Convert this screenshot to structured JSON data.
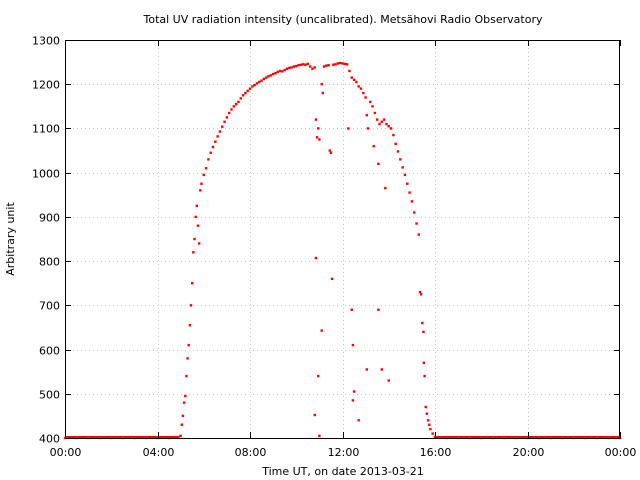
{
  "chart_data": {
    "type": "scatter",
    "title": "Total UV radiation intensity (uncalibrated). Metsähovi Radio Observatory",
    "xlabel": "Time UT, on date 2013-03-21",
    "ylabel": "Arbitrary unit",
    "xlim": [
      0,
      24
    ],
    "ylim": [
      400,
      1300
    ],
    "x_ticks": [
      0,
      4,
      8,
      12,
      16,
      20,
      24
    ],
    "x_tick_labels": [
      "00:00",
      "04:00",
      "08:00",
      "12:00",
      "16:00",
      "20:00",
      "00:00"
    ],
    "y_ticks": [
      400,
      500,
      600,
      700,
      800,
      900,
      1000,
      1100,
      1200,
      1300
    ],
    "y_tick_labels": [
      "400",
      "500",
      "600",
      "700",
      "800",
      "900",
      "1000",
      "1100",
      "1200",
      "1300"
    ],
    "grid": true,
    "color": "#ff0000",
    "series": [
      {
        "points": [
          [
            0.0,
            400
          ],
          [
            0.5,
            400
          ],
          [
            1.0,
            400
          ],
          [
            1.5,
            400
          ],
          [
            2.0,
            400
          ],
          [
            2.5,
            400
          ],
          [
            3.0,
            400
          ],
          [
            3.5,
            400
          ],
          [
            4.0,
            400
          ],
          [
            4.5,
            400
          ],
          [
            4.9,
            402
          ],
          [
            5.0,
            405
          ],
          [
            5.05,
            430
          ],
          [
            5.1,
            450
          ],
          [
            5.15,
            480
          ],
          [
            5.2,
            495
          ],
          [
            5.25,
            540
          ],
          [
            5.3,
            580
          ],
          [
            5.35,
            610
          ],
          [
            5.4,
            655
          ],
          [
            5.45,
            700
          ],
          [
            5.5,
            750
          ],
          [
            5.55,
            820
          ],
          [
            5.6,
            850
          ],
          [
            5.65,
            900
          ],
          [
            5.7,
            925
          ],
          [
            5.75,
            880
          ],
          [
            5.8,
            840
          ],
          [
            5.85,
            960
          ],
          [
            5.9,
            975
          ],
          [
            6.0,
            995
          ],
          [
            6.1,
            1010
          ],
          [
            6.2,
            1030
          ],
          [
            6.3,
            1045
          ],
          [
            6.4,
            1058
          ],
          [
            6.5,
            1070
          ],
          [
            6.6,
            1082
          ],
          [
            6.7,
            1093
          ],
          [
            6.8,
            1104
          ],
          [
            6.9,
            1115
          ],
          [
            7.0,
            1125
          ],
          [
            7.1,
            1135
          ],
          [
            7.2,
            1143
          ],
          [
            7.3,
            1150
          ],
          [
            7.4,
            1155
          ],
          [
            7.5,
            1160
          ],
          [
            7.6,
            1168
          ],
          [
            7.7,
            1175
          ],
          [
            7.8,
            1180
          ],
          [
            7.9,
            1185
          ],
          [
            8.0,
            1190
          ],
          [
            8.1,
            1195
          ],
          [
            8.2,
            1198
          ],
          [
            8.3,
            1202
          ],
          [
            8.4,
            1205
          ],
          [
            8.5,
            1208
          ],
          [
            8.6,
            1212
          ],
          [
            8.7,
            1215
          ],
          [
            8.8,
            1218
          ],
          [
            8.9,
            1220
          ],
          [
            9.0,
            1223
          ],
          [
            9.1,
            1225
          ],
          [
            9.2,
            1228
          ],
          [
            9.3,
            1230
          ],
          [
            9.4,
            1229
          ],
          [
            9.5,
            1232
          ],
          [
            9.6,
            1235
          ],
          [
            9.7,
            1237
          ],
          [
            9.8,
            1238
          ],
          [
            9.9,
            1240
          ],
          [
            10.0,
            1241
          ],
          [
            10.1,
            1243
          ],
          [
            10.2,
            1244
          ],
          [
            10.3,
            1245
          ],
          [
            10.4,
            1244
          ],
          [
            10.5,
            1246
          ],
          [
            10.6,
            1240
          ],
          [
            10.7,
            1235
          ],
          [
            10.8,
            1238
          ],
          [
            10.85,
            1120
          ],
          [
            10.9,
            1080
          ],
          [
            10.95,
            1100
          ],
          [
            11.0,
            1075
          ],
          [
            11.1,
            1200
          ],
          [
            11.15,
            1180
          ],
          [
            11.2,
            1240
          ],
          [
            11.3,
            1242
          ],
          [
            11.4,
            1243
          ],
          [
            11.45,
            1050
          ],
          [
            11.5,
            1045
          ],
          [
            11.6,
            1244
          ],
          [
            11.7,
            1245
          ],
          [
            11.8,
            1247
          ],
          [
            11.9,
            1248
          ],
          [
            12.0,
            1247
          ],
          [
            12.1,
            1246
          ],
          [
            12.2,
            1245
          ],
          [
            12.25,
            1100
          ],
          [
            12.3,
            1230
          ],
          [
            12.4,
            1215
          ],
          [
            12.5,
            1210
          ],
          [
            12.6,
            1205
          ],
          [
            12.7,
            1195
          ],
          [
            12.8,
            1190
          ],
          [
            12.9,
            1180
          ],
          [
            13.0,
            1170
          ],
          [
            13.05,
            1130
          ],
          [
            13.1,
            1100
          ],
          [
            13.2,
            1160
          ],
          [
            13.3,
            1150
          ],
          [
            13.35,
            1060
          ],
          [
            13.4,
            1135
          ],
          [
            13.5,
            1120
          ],
          [
            13.55,
            1020
          ],
          [
            13.6,
            1110
          ],
          [
            13.7,
            1115
          ],
          [
            13.8,
            1120
          ],
          [
            13.85,
            965
          ],
          [
            13.9,
            1110
          ],
          [
            14.0,
            1105
          ],
          [
            14.1,
            1100
          ],
          [
            14.2,
            1085
          ],
          [
            14.3,
            1065
          ],
          [
            14.4,
            1048
          ],
          [
            14.5,
            1030
          ],
          [
            14.6,
            1012
          ],
          [
            14.7,
            995
          ],
          [
            14.8,
            975
          ],
          [
            14.9,
            955
          ],
          [
            15.0,
            935
          ],
          [
            15.1,
            910
          ],
          [
            15.2,
            885
          ],
          [
            15.3,
            860
          ],
          [
            15.35,
            730
          ],
          [
            15.4,
            725
          ],
          [
            15.45,
            660
          ],
          [
            15.5,
            640
          ],
          [
            15.52,
            570
          ],
          [
            15.55,
            540
          ],
          [
            15.6,
            470
          ],
          [
            15.65,
            455
          ],
          [
            15.7,
            440
          ],
          [
            15.75,
            430
          ],
          [
            15.8,
            420
          ],
          [
            15.9,
            410
          ],
          [
            16.0,
            402
          ],
          [
            16.5,
            400
          ],
          [
            17.0,
            400
          ],
          [
            17.5,
            400
          ],
          [
            18.0,
            400
          ],
          [
            18.5,
            400
          ],
          [
            19.0,
            400
          ],
          [
            19.5,
            400
          ],
          [
            20.0,
            400
          ],
          [
            20.5,
            400
          ],
          [
            21.0,
            400
          ],
          [
            21.5,
            400
          ],
          [
            22.0,
            400
          ],
          [
            22.5,
            400
          ],
          [
            23.0,
            400
          ],
          [
            23.5,
            400
          ],
          [
            24.0,
            400
          ],
          [
            10.85,
            807
          ],
          [
            11.1,
            643
          ],
          [
            11.55,
            760
          ],
          [
            12.4,
            690
          ],
          [
            12.45,
            610
          ],
          [
            12.5,
            505
          ],
          [
            12.45,
            485
          ],
          [
            12.7,
            440
          ],
          [
            13.05,
            555
          ],
          [
            13.55,
            690
          ],
          [
            13.7,
            555
          ],
          [
            14.0,
            530
          ],
          [
            10.8,
            452
          ],
          [
            10.95,
            540
          ],
          [
            11.0,
            405
          ]
        ]
      }
    ]
  }
}
